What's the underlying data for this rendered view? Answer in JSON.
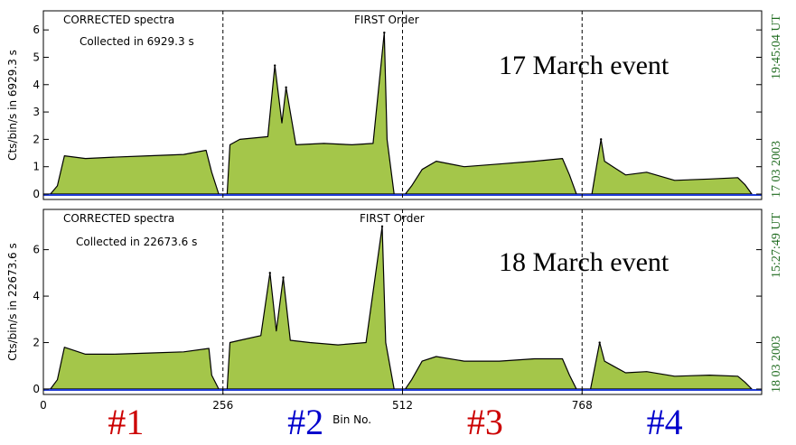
{
  "chart_data": [
    {
      "type": "area",
      "event_label": "17 March event",
      "header_left": "CORRECTED spectra",
      "collected_text": "Collected in  6929.3 s",
      "header_center": "FIRST Order",
      "ylabel": "Cts/bin/s in 6929.3 s",
      "side_time": "19:45:04 UT",
      "side_date": "17 03 2003",
      "ylim": [
        0,
        6.5
      ],
      "yticks": [
        0,
        1,
        2,
        3,
        4,
        5,
        6
      ],
      "xlim": [
        0,
        1024
      ],
      "dividers": [
        256,
        512,
        768
      ],
      "peaks": [
        {
          "x": 330,
          "y": 4.7
        },
        {
          "x": 346,
          "y": 3.9
        },
        {
          "x": 486,
          "y": 5.9
        },
        {
          "x": 795,
          "y": 2.0
        }
      ],
      "segments": [
        {
          "name": "#1",
          "x": [
            0,
            10,
            20,
            30,
            60,
            100,
            150,
            200,
            232,
            240,
            250,
            256
          ],
          "y": [
            0,
            0,
            0.3,
            1.4,
            1.3,
            1.35,
            1.4,
            1.45,
            1.6,
            0.8,
            0,
            0
          ]
        },
        {
          "name": "#2",
          "x": [
            256,
            262,
            266,
            280,
            320,
            330,
            340,
            346,
            360,
            400,
            440,
            470,
            486,
            490,
            500,
            512
          ],
          "y": [
            0,
            0,
            1.8,
            2.0,
            2.1,
            4.7,
            2.6,
            3.9,
            1.8,
            1.85,
            1.8,
            1.85,
            5.9,
            2.0,
            0,
            0
          ]
        },
        {
          "name": "#3",
          "x": [
            512,
            516,
            525,
            540,
            560,
            600,
            650,
            700,
            740,
            750,
            760,
            768
          ],
          "y": [
            0,
            0,
            0.3,
            0.9,
            1.2,
            1.0,
            1.1,
            1.2,
            1.3,
            0.7,
            0,
            0
          ]
        },
        {
          "name": "#4",
          "x": [
            768,
            782,
            795,
            800,
            812,
            830,
            860,
            900,
            950,
            990,
            1000,
            1010
          ],
          "y": [
            0,
            0,
            2.0,
            1.2,
            1.0,
            0.7,
            0.8,
            0.5,
            0.55,
            0.6,
            0.35,
            0
          ]
        }
      ]
    },
    {
      "type": "area",
      "event_label": "18 March event",
      "header_left": "CORRECTED spectra",
      "collected_text": "Collected in 22673.6 s",
      "header_center": "FIRST Order",
      "ylabel": "Cts/bin/s in 22673.6 s",
      "side_time": "15:27:49 UT",
      "side_date": "18 03 2003",
      "ylim": [
        0,
        7.5
      ],
      "yticks": [
        0,
        2,
        4,
        6
      ],
      "xlim": [
        0,
        1024
      ],
      "dividers": [
        256,
        512,
        768
      ],
      "peaks": [
        {
          "x": 323,
          "y": 5.0
        },
        {
          "x": 342,
          "y": 4.8
        },
        {
          "x": 483,
          "y": 7.0
        },
        {
          "x": 793,
          "y": 2.0
        }
      ],
      "segments": [
        {
          "name": "#1",
          "x": [
            0,
            10,
            20,
            30,
            60,
            100,
            150,
            200,
            236,
            240,
            250,
            256
          ],
          "y": [
            0,
            0,
            0.4,
            1.8,
            1.5,
            1.5,
            1.55,
            1.6,
            1.75,
            0.6,
            0,
            0
          ]
        },
        {
          "name": "#2",
          "x": [
            256,
            262,
            266,
            280,
            310,
            323,
            332,
            342,
            352,
            380,
            420,
            460,
            483,
            488,
            500,
            512
          ],
          "y": [
            0,
            0,
            2.0,
            2.1,
            2.3,
            5.0,
            2.5,
            4.8,
            2.1,
            2.0,
            1.9,
            2.0,
            7.0,
            2.0,
            0,
            0
          ]
        },
        {
          "name": "#3",
          "x": [
            512,
            516,
            525,
            540,
            560,
            600,
            650,
            700,
            740,
            750,
            760,
            768
          ],
          "y": [
            0,
            0,
            0.4,
            1.2,
            1.4,
            1.2,
            1.2,
            1.3,
            1.3,
            0.6,
            0,
            0
          ]
        },
        {
          "name": "#4",
          "x": [
            768,
            780,
            793,
            800,
            812,
            830,
            860,
            900,
            950,
            990,
            1000,
            1010
          ],
          "y": [
            0,
            0,
            2.0,
            1.2,
            1.0,
            0.7,
            0.75,
            0.55,
            0.6,
            0.55,
            0.3,
            0
          ]
        }
      ]
    }
  ],
  "xaxis": {
    "label": "Bin No.",
    "ticks": [
      {
        "value": 0,
        "label": "0"
      },
      {
        "value": 256,
        "label": "256"
      },
      {
        "value": 512,
        "label": "512"
      },
      {
        "value": 768,
        "label": "768"
      }
    ]
  },
  "segment_labels": [
    {
      "text": "#1",
      "color": "#cc0000",
      "center": 128
    },
    {
      "text": "#2",
      "color": "#0000cc",
      "center": 384
    },
    {
      "text": "#3",
      "color": "#cc0000",
      "center": 640
    },
    {
      "text": "#4",
      "color": "#0000cc",
      "center": 896
    }
  ],
  "colors": {
    "fill": "#a4c64a",
    "line": "#000000",
    "baseline": "#1f3bd6",
    "side_text": "#1f6b1f"
  }
}
